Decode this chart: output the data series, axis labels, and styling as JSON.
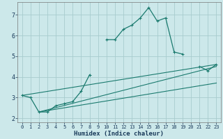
{
  "xlabel": "Humidex (Indice chaleur)",
  "bg_color": "#cce8ea",
  "grid_color": "#a8ccce",
  "line_color": "#1a7a6e",
  "axis_label_color": "#1a3a5a",
  "xlim": [
    -0.5,
    23.5
  ],
  "ylim": [
    1.8,
    7.6
  ],
  "xticks": [
    0,
    1,
    2,
    3,
    4,
    5,
    6,
    7,
    8,
    9,
    10,
    11,
    12,
    13,
    14,
    15,
    16,
    17,
    18,
    19,
    20,
    21,
    22,
    23
  ],
  "yticks": [
    2,
    3,
    4,
    5,
    6,
    7
  ],
  "series": [
    {
      "x": [
        0,
        1,
        2,
        3,
        4,
        5,
        6,
        7,
        8,
        9,
        10,
        11,
        12,
        13,
        14,
        15,
        16,
        17,
        18,
        19,
        20,
        21,
        22,
        23
      ],
      "y": [
        3.1,
        3.0,
        2.3,
        2.3,
        2.6,
        2.7,
        2.8,
        3.3,
        4.1,
        null,
        5.8,
        5.8,
        6.3,
        6.5,
        6.85,
        7.35,
        6.7,
        6.85,
        5.2,
        5.1,
        null,
        4.5,
        4.3,
        4.6
      ],
      "marker": true
    },
    {
      "x": [
        0,
        23
      ],
      "y": [
        3.1,
        4.6
      ],
      "marker": false
    },
    {
      "x": [
        2,
        23
      ],
      "y": [
        2.3,
        4.5
      ],
      "marker": false
    },
    {
      "x": [
        2,
        23
      ],
      "y": [
        2.3,
        3.7
      ],
      "marker": false
    }
  ]
}
